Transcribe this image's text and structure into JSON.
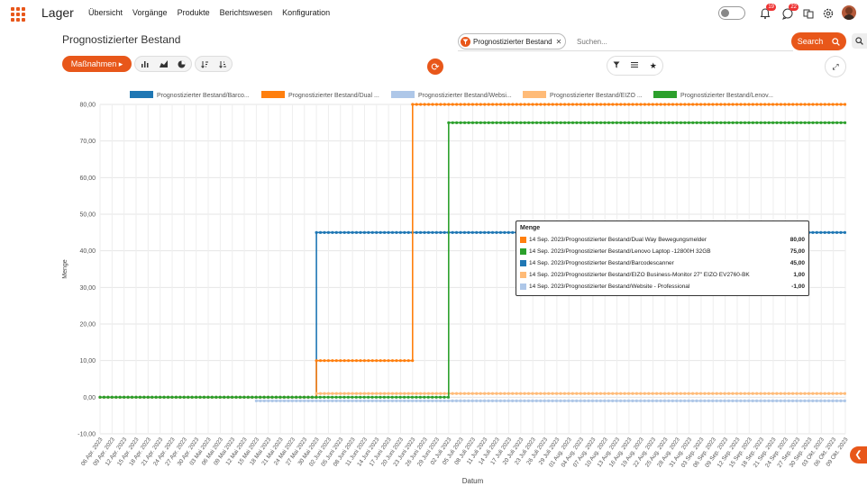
{
  "app": {
    "title": "Lager"
  },
  "menu": [
    "Übersicht",
    "Vorgänge",
    "Produkte",
    "Berichtswesen",
    "Konfiguration"
  ],
  "notifications": {
    "bell_count": "19",
    "chat_count": "22"
  },
  "page": {
    "title": "Prognostizierter Bestand"
  },
  "search": {
    "chip": "Prognostizierter Bestand",
    "placeholder": "Suchen...",
    "button": "Search"
  },
  "toolbar": {
    "actions_label": "Maßnahmen"
  },
  "icons": {
    "apps": "grid-icon",
    "chart_bar": "bar-chart-icon",
    "chart_area": "area-chart-icon",
    "chart_pie": "pie-chart-icon",
    "sort_asc": "sort-ascending-icon",
    "sort_desc": "sort-descending-icon",
    "refresh": "refresh-icon",
    "filter": "filter-icon",
    "list": "list-icon",
    "favorite": "star-icon",
    "expand": "expand-icon"
  },
  "colors": {
    "accent": "#e8571a"
  },
  "tooltip": {
    "title": "Menge",
    "rows": [
      {
        "label": "14 Sep. 2023/Prognostizierter Bestand/Dual Way Bewegungsmelder",
        "value": "80,00",
        "color": "#ff7f0e"
      },
      {
        "label": "14 Sep. 2023/Prognostizierter Bestand/Lenovo Laptop -12800H 32GB",
        "value": "75,00",
        "color": "#2ca02c"
      },
      {
        "label": "14 Sep. 2023/Prognostizierter Bestand/Barcodescanner",
        "value": "45,00",
        "color": "#1f77b4"
      },
      {
        "label": "14 Sep. 2023/Prognostizierter Bestand/EIZO Business-Monitor 27\" EIZO EV2760-BK",
        "value": "1,00",
        "color": "#ffbb78"
      },
      {
        "label": "14 Sep. 2023/Prognostizierter Bestand/Website - Professional",
        "value": "-1,00",
        "color": "#aec7e8"
      }
    ]
  },
  "chart_data": {
    "type": "line",
    "xlabel": "Datum",
    "ylabel": "Menge",
    "ylim": [
      -10,
      80
    ],
    "yticks": [
      "-10,00",
      "0,00",
      "10,00",
      "20,00",
      "30,00",
      "40,00",
      "50,00",
      "60,00",
      "70,00",
      "80,00"
    ],
    "x": [
      "06 Apr. 2023",
      "09 Apr. 2023",
      "12 Apr. 2023",
      "15 Apr. 2023",
      "18 Apr. 2023",
      "21 Apr. 2023",
      "24 Apr. 2023",
      "27 Apr. 2023",
      "30 Apr. 2023",
      "03 Mai 2023",
      "06 Mai 2023",
      "09 Mai 2023",
      "12 Mai 2023",
      "15 Mai 2023",
      "18 Mai 2023",
      "21 Mai 2023",
      "24 Mai 2023",
      "27 Mai 2023",
      "30 Mai 2023",
      "02 Juni 2023",
      "05 Juni 2023",
      "08 Juni 2023",
      "11 Juni 2023",
      "14 Juni 2023",
      "17 Juni 2023",
      "20 Juni 2023",
      "23 Juni 2023",
      "26 Juni 2023",
      "29 Juni 2023",
      "02 Juli 2023",
      "05 Juli 2023",
      "08 Juli 2023",
      "11 Juli 2023",
      "14 Juli 2023",
      "17 Juli 2023",
      "20 Juli 2023",
      "23 Juli 2023",
      "26 Juli 2023",
      "29 Juli 2023",
      "01 Aug. 2023",
      "04 Aug. 2023",
      "07 Aug. 2023",
      "10 Aug. 2023",
      "13 Aug. 2023",
      "16 Aug. 2023",
      "19 Aug. 2023",
      "22 Aug. 2023",
      "25 Aug. 2023",
      "28 Aug. 2023",
      "31 Aug. 2023",
      "03 Sep. 2023",
      "06 Sep. 2023",
      "09 Sep. 2023",
      "12 Sep. 2023",
      "15 Sep. 2023",
      "18 Sep. 2023",
      "21 Sep. 2023",
      "24 Sep. 2023",
      "27 Sep. 2023",
      "30 Sep. 2023",
      "03 Okt. 2023",
      "06 Okt. 2023",
      "09 Okt. 2023"
    ],
    "series": [
      {
        "name": "Prognostizierter Bestand/Barco...",
        "color": "#1f77b4",
        "steps": [
          {
            "from": "06 Apr. 2023",
            "value": 0
          },
          {
            "from": "30 Mai 2023",
            "value": 45
          }
        ]
      },
      {
        "name": "Prognostizierter Bestand/Dual ...",
        "color": "#ff7f0e",
        "steps": [
          {
            "from": "06 Apr. 2023",
            "value": 0
          },
          {
            "from": "30 Mai 2023",
            "value": 10
          },
          {
            "from": "23 Juni 2023",
            "value": 80
          }
        ]
      },
      {
        "name": "Prognostizierter Bestand/Websi...",
        "color": "#aec7e8",
        "steps": [
          {
            "from": "15 Mai 2023",
            "value": -1
          }
        ]
      },
      {
        "name": "Prognostizierter Bestand/EIZO ...",
        "color": "#ffbb78",
        "steps": [
          {
            "from": "30 Mai 2023",
            "value": 1
          }
        ]
      },
      {
        "name": "Prognostizierter Bestand/Lenov...",
        "color": "#2ca02c",
        "steps": [
          {
            "from": "06 Apr. 2023",
            "value": 0
          },
          {
            "from": "02 Juli 2023",
            "value": 75
          }
        ]
      }
    ]
  }
}
